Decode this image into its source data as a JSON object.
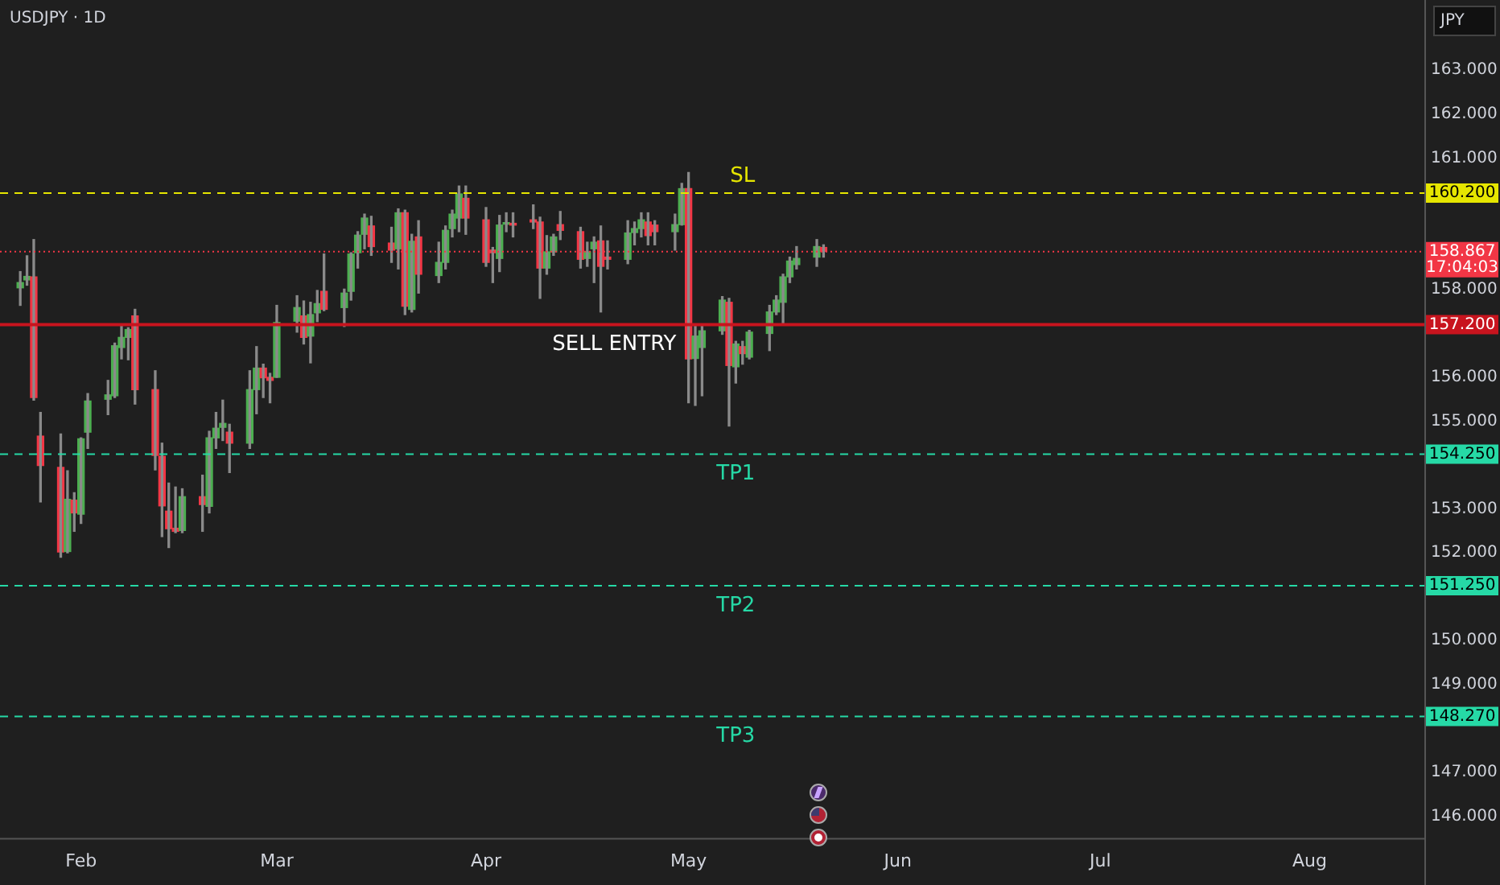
{
  "chart_data": {
    "type": "candlestick",
    "title": "USDJPY · 1D",
    "x": [
      "--01-23",
      "--01-24",
      "--01-25",
      "--01-26",
      "--01-29",
      "--01-30",
      "--01-31",
      "--02-01",
      "--02-02",
      "--02-05",
      "--02-06",
      "--02-07",
      "--02-08",
      "--02-09",
      "--02-12",
      "--02-13",
      "--02-14",
      "--02-15",
      "--02-16",
      "--02-19",
      "--02-20",
      "--02-21",
      "--02-22",
      "--02-23",
      "--02-26",
      "--02-27",
      "--02-28",
      "--02-29",
      "--03-01",
      "--03-04",
      "--03-05",
      "--03-06",
      "--03-07",
      "--03-08",
      "--03-11",
      "--03-12",
      "--03-13",
      "--03-14",
      "--03-15",
      "--03-18",
      "--03-19",
      "--03-20",
      "--03-21",
      "--03-22",
      "--03-25",
      "--03-26",
      "--03-27",
      "--03-28",
      "--03-29",
      "--04-01",
      "--04-02",
      "--04-03",
      "--04-04",
      "--04-05",
      "--04-08",
      "--04-09",
      "--04-10",
      "--04-11",
      "--04-12",
      "--04-15",
      "--04-16",
      "--04-17",
      "--04-18",
      "--04-19",
      "--04-22",
      "--04-23",
      "--04-24",
      "--04-25",
      "--04-26",
      "--04-29",
      "--04-30",
      "--05-01",
      "--05-02",
      "--05-03",
      "--05-06",
      "--05-07",
      "--05-08",
      "--05-09",
      "--05-10",
      "--05-13",
      "--05-14",
      "--05-15",
      "--05-16",
      "--05-17",
      "--05-20",
      "--05-21"
    ],
    "ohlc": [
      [
        158.04,
        158.41,
        157.64,
        158.16
      ],
      [
        158.22,
        158.77,
        158.1,
        158.3
      ],
      [
        158.29,
        159.14,
        155.48,
        155.54
      ],
      [
        154.66,
        155.2,
        153.16,
        153.99
      ],
      [
        153.95,
        154.71,
        151.9,
        152.02
      ],
      [
        152.03,
        153.87,
        152.0,
        153.22
      ],
      [
        153.2,
        153.37,
        152.49,
        152.91
      ],
      [
        152.88,
        154.62,
        152.67,
        154.6
      ],
      [
        154.75,
        155.63,
        154.38,
        155.46
      ],
      [
        155.5,
        155.93,
        155.15,
        155.6
      ],
      [
        155.58,
        156.78,
        155.54,
        156.72
      ],
      [
        156.68,
        157.21,
        156.42,
        156.91
      ],
      [
        156.91,
        157.13,
        156.4,
        157.09
      ],
      [
        157.4,
        157.55,
        155.39,
        155.72
      ],
      [
        155.72,
        156.15,
        153.89,
        154.22
      ],
      [
        154.2,
        154.5,
        152.37,
        153.07
      ],
      [
        152.95,
        153.59,
        152.12,
        152.55
      ],
      [
        152.56,
        153.5,
        152.46,
        152.49
      ],
      [
        152.51,
        153.46,
        152.46,
        153.28
      ],
      [
        153.28,
        153.77,
        152.49,
        153.1
      ],
      [
        153.06,
        154.77,
        152.91,
        154.62
      ],
      [
        154.62,
        155.2,
        154.38,
        154.84
      ],
      [
        154.86,
        155.48,
        154.56,
        154.95
      ],
      [
        154.75,
        154.93,
        153.83,
        154.5
      ],
      [
        154.5,
        156.15,
        154.38,
        155.72
      ],
      [
        155.72,
        156.7,
        155.17,
        156.21
      ],
      [
        156.21,
        156.3,
        155.54,
        155.99
      ],
      [
        156.0,
        156.09,
        155.42,
        155.93
      ],
      [
        156.0,
        157.64,
        156.0,
        157.25
      ],
      [
        157.28,
        157.86,
        157.03,
        157.59
      ],
      [
        157.4,
        157.74,
        156.76,
        156.91
      ],
      [
        156.94,
        157.71,
        156.33,
        157.43
      ],
      [
        157.47,
        157.98,
        157.27,
        157.68
      ],
      [
        157.96,
        158.81,
        157.52,
        157.55
      ],
      [
        157.59,
        158.01,
        157.16,
        157.92
      ],
      [
        157.96,
        158.84,
        157.76,
        158.81
      ],
      [
        158.84,
        159.32,
        158.49,
        159.24
      ],
      [
        159.26,
        159.72,
        158.93,
        159.63
      ],
      [
        159.45,
        159.67,
        158.78,
        158.98
      ],
      [
        159.06,
        159.42,
        158.62,
        158.9
      ],
      [
        158.93,
        159.84,
        158.47,
        159.75
      ],
      [
        159.75,
        159.81,
        157.43,
        157.62
      ],
      [
        157.55,
        159.26,
        157.49,
        159.1
      ],
      [
        159.2,
        159.57,
        157.92,
        158.35
      ],
      [
        158.32,
        159.08,
        158.16,
        158.62
      ],
      [
        158.62,
        159.45,
        158.47,
        159.35
      ],
      [
        159.39,
        159.81,
        159.2,
        159.72
      ],
      [
        159.63,
        160.36,
        159.32,
        160.18
      ],
      [
        160.08,
        160.36,
        159.26,
        159.63
      ],
      [
        159.59,
        159.87,
        158.53,
        158.62
      ],
      [
        158.9,
        158.96,
        158.16,
        158.84
      ],
      [
        158.71,
        159.69,
        158.41,
        159.47
      ],
      [
        159.49,
        159.75,
        159.32,
        159.51
      ],
      [
        159.51,
        159.75,
        159.2,
        159.47
      ],
      [
        159.59,
        159.93,
        159.39,
        159.54
      ],
      [
        159.54,
        159.65,
        157.8,
        158.49
      ],
      [
        158.49,
        159.23,
        158.35,
        158.86
      ],
      [
        158.86,
        159.26,
        158.78,
        159.2
      ],
      [
        159.48,
        159.78,
        159.14,
        159.35
      ],
      [
        159.32,
        159.42,
        158.49,
        158.69
      ],
      [
        158.71,
        159.08,
        158.53,
        158.86
      ],
      [
        158.93,
        159.2,
        158.16,
        159.08
      ],
      [
        159.11,
        159.45,
        157.49,
        158.53
      ],
      [
        158.74,
        159.11,
        158.47,
        158.69
      ],
      [
        158.69,
        159.57,
        158.59,
        159.29
      ],
      [
        159.3,
        159.54,
        159.02,
        159.39
      ],
      [
        159.39,
        159.75,
        159.2,
        159.59
      ],
      [
        159.54,
        159.75,
        159.02,
        159.23
      ],
      [
        159.47,
        159.57,
        159.02,
        159.32
      ],
      [
        159.32,
        159.72,
        158.9,
        159.48
      ],
      [
        159.48,
        160.42,
        159.47,
        160.3
      ],
      [
        160.3,
        160.67,
        155.42,
        156.42
      ],
      [
        156.43,
        157.19,
        155.36,
        156.94
      ],
      [
        156.68,
        157.19,
        155.58,
        157.06
      ],
      [
        157.06,
        157.84,
        156.98,
        157.76
      ],
      [
        157.71,
        157.8,
        154.89,
        156.27
      ],
      [
        156.24,
        156.82,
        155.87,
        156.76
      ],
      [
        156.7,
        156.82,
        156.3,
        156.54
      ],
      [
        156.46,
        157.07,
        156.42,
        157.03
      ],
      [
        157.0,
        157.64,
        156.61,
        157.49
      ],
      [
        157.49,
        157.86,
        157.43,
        157.76
      ],
      [
        157.71,
        158.35,
        157.19,
        158.29
      ],
      [
        158.29,
        158.74,
        158.16,
        158.65
      ],
      [
        158.57,
        158.98,
        158.47,
        158.71
      ],
      [
        158.74,
        159.14,
        158.53,
        158.98
      ],
      [
        158.96,
        159.02,
        158.74,
        158.87
      ]
    ],
    "colors": [
      "#4caf50",
      "#4caf50",
      "#f23645",
      "#f23645",
      "#f23645",
      "#4caf50",
      "#f23645",
      "#4caf50",
      "#4caf50",
      "#4caf50",
      "#4caf50",
      "#4caf50",
      "#4caf50",
      "#f23645",
      "#f23645",
      "#f23645",
      "#f23645",
      "#f23645",
      "#4caf50",
      "#f23645",
      "#4caf50",
      "#4caf50",
      "#4caf50",
      "#f23645",
      "#4caf50",
      "#4caf50",
      "#f23645",
      "#f23645",
      "#4caf50",
      "#4caf50",
      "#f23645",
      "#4caf50",
      "#4caf50",
      "#f23645",
      "#4caf50",
      "#4caf50",
      "#4caf50",
      "#4caf50",
      "#f23645",
      "#f23645",
      "#4caf50",
      "#f23645",
      "#4caf50",
      "#f23645",
      "#4caf50",
      "#4caf50",
      "#4caf50",
      "#4caf50",
      "#f23645",
      "#f23645",
      "#f23645",
      "#4caf50",
      "#4caf50",
      "#f23645",
      "#f23645",
      "#f23645",
      "#4caf50",
      "#4caf50",
      "#f23645",
      "#f23645",
      "#4caf50",
      "#4caf50",
      "#f23645",
      "#f23645",
      "#4caf50",
      "#4caf50",
      "#4caf50",
      "#f23645",
      "#f23645",
      "#4caf50",
      "#4caf50",
      "#f23645",
      "#4caf50",
      "#4caf50",
      "#4caf50",
      "#f23645",
      "#4caf50",
      "#f23645",
      "#4caf50",
      "#4caf50",
      "#4caf50",
      "#4caf50",
      "#4caf50",
      "#4caf50",
      "#4caf50",
      "#f23645"
    ],
    "xlim": [
      "--01-20",
      "--08-18"
    ],
    "xticks": [
      {
        "value": "--02-01",
        "label": "Feb"
      },
      {
        "value": "--03-01",
        "label": "Mar"
      },
      {
        "value": "--04-01",
        "label": "Apr"
      },
      {
        "value": "--05-01",
        "label": "May"
      },
      {
        "value": "--06-01",
        "label": "Jun"
      },
      {
        "value": "--07-01",
        "label": "Jul"
      },
      {
        "value": "--08-01",
        "label": "Aug"
      }
    ],
    "ylim": [
      145.5,
      164.6
    ],
    "yticks": [
      {
        "value": 146,
        "label": "146.000"
      },
      {
        "value": 147,
        "label": "147.000"
      },
      {
        "value": 149,
        "label": "149.000"
      },
      {
        "value": 150,
        "label": "150.000"
      },
      {
        "value": 152,
        "label": "152.000"
      },
      {
        "value": 153,
        "label": "153.000"
      },
      {
        "value": 155,
        "label": "155.000"
      },
      {
        "value": 156,
        "label": "156.000"
      },
      {
        "value": 158,
        "label": "158.000"
      },
      {
        "value": 161,
        "label": "161.000"
      },
      {
        "value": 162,
        "label": "162.000"
      },
      {
        "value": 163,
        "label": "163.000"
      }
    ],
    "ref_lines": [
      {
        "axis": "y",
        "value": 160.2,
        "label": "160.200",
        "color": "#e6e600",
        "line_style": "dashed"
      },
      {
        "axis": "y",
        "value": 158.867,
        "label": "158.867",
        "color": "#f23645",
        "line_style": "dotted"
      },
      {
        "axis": "y",
        "value": 157.2,
        "label": "157.200",
        "color": "#c8141e",
        "line_style": "solid"
      },
      {
        "axis": "y",
        "value": 154.25,
        "label": "154.250",
        "color": "#26d9a6",
        "line_style": "dashed"
      },
      {
        "axis": "y",
        "value": 151.25,
        "label": "151.250",
        "color": "#26d9a6",
        "line_style": "dashed"
      },
      {
        "axis": "y",
        "value": 148.27,
        "label": "148.270",
        "color": "#26d9a6",
        "line_style": "dashed"
      }
    ],
    "annotations": [
      "JPY",
      "17:04:03",
      {
        "text": "SL",
        "x": "--05-09",
        "y": 160.2
      },
      {
        "text": "SELL ENTRY",
        "x": "--04-20",
        "y": 157.2
      },
      {
        "text": "TP1",
        "x": "--05-08",
        "y": 154.25
      },
      {
        "text": "TP2",
        "x": "--05-08",
        "y": 151.25
      },
      {
        "text": "TP3",
        "x": "--05-08",
        "y": 148.27
      }
    ],
    "grid": false,
    "legend": false
  }
}
